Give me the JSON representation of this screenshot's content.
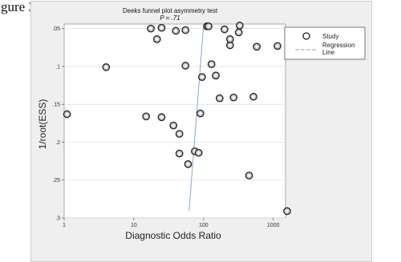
{
  "page": {
    "caption": "gure 3."
  },
  "chart_data": {
    "type": "scatter",
    "title": "Deeks funnel plot asymmetry test",
    "subtitle": "P = .71",
    "xlabel": "Diagnostic Odds Ratio",
    "ylabel": "1/root(ESS)",
    "x_scale": "log",
    "xlim": [
      1,
      1500
    ],
    "ylim": [
      0.3,
      0.044
    ],
    "x_ticks": [
      {
        "value": 1,
        "label": "1"
      },
      {
        "value": 10,
        "label": "10"
      },
      {
        "value": 100,
        "label": "100"
      },
      {
        "value": 1000,
        "label": "1000"
      }
    ],
    "y_ticks": [
      {
        "value": 0.05,
        "label": ".05"
      },
      {
        "value": 0.1,
        "label": ".1"
      },
      {
        "value": 0.15,
        "label": ".15"
      },
      {
        "value": 0.2,
        "label": ".2"
      },
      {
        "value": 0.25,
        "label": ".25"
      },
      {
        "value": 0.3,
        "label": ".3"
      }
    ],
    "grid": true,
    "legend_position": "right",
    "legend": [
      "Study",
      "Regression Line"
    ],
    "series": [
      {
        "name": "Study",
        "points": [
          {
            "x": 1.1,
            "y": 0.163
          },
          {
            "x": 4.0,
            "y": 0.101
          },
          {
            "x": 17.5,
            "y": 0.05
          },
          {
            "x": 21.5,
            "y": 0.064
          },
          {
            "x": 25,
            "y": 0.049
          },
          {
            "x": 40,
            "y": 0.053
          },
          {
            "x": 55,
            "y": 0.052
          },
          {
            "x": 55,
            "y": 0.099
          },
          {
            "x": 90,
            "y": 0.162
          },
          {
            "x": 95,
            "y": 0.114
          },
          {
            "x": 112,
            "y": 0.047
          },
          {
            "x": 118,
            "y": 0.047
          },
          {
            "x": 130,
            "y": 0.097
          },
          {
            "x": 150,
            "y": 0.112
          },
          {
            "x": 170,
            "y": 0.142
          },
          {
            "x": 200,
            "y": 0.051
          },
          {
            "x": 240,
            "y": 0.072
          },
          {
            "x": 240,
            "y": 0.064
          },
          {
            "x": 270,
            "y": 0.141
          },
          {
            "x": 320,
            "y": 0.055
          },
          {
            "x": 330,
            "y": 0.046
          },
          {
            "x": 520,
            "y": 0.14
          },
          {
            "x": 580,
            "y": 0.074
          },
          {
            "x": 1150,
            "y": 0.073
          },
          {
            "x": 15,
            "y": 0.166
          },
          {
            "x": 25,
            "y": 0.167
          },
          {
            "x": 37,
            "y": 0.178
          },
          {
            "x": 45,
            "y": 0.189
          },
          {
            "x": 45,
            "y": 0.215
          },
          {
            "x": 60,
            "y": 0.229
          },
          {
            "x": 75,
            "y": 0.212
          },
          {
            "x": 85,
            "y": 0.214
          },
          {
            "x": 450,
            "y": 0.244
          },
          {
            "x": 1600,
            "y": 0.291
          }
        ]
      },
      {
        "name": "Regression Line",
        "line": [
          {
            "x": 100,
            "y": 0.046
          },
          {
            "x": 62,
            "y": 0.29
          }
        ]
      }
    ]
  },
  "colors": {
    "frame_bg": "#efefef",
    "plot_bg": "#ffffff",
    "grid": "#e2e2e2",
    "marker_edge": "#222222",
    "marker_fill": "#c8c8c8",
    "regression_line": "#8aa7c8"
  }
}
